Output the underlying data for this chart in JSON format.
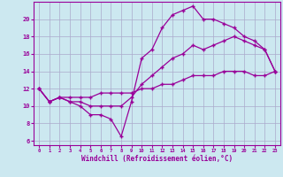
{
  "xlabel": "Windchill (Refroidissement éolien,°C)",
  "bg_color": "#cce8f0",
  "grid_color": "#aaaacc",
  "line_color": "#990099",
  "line1_x": [
    0,
    1,
    2,
    3,
    4,
    5,
    6,
    7,
    8,
    9,
    10,
    11,
    12,
    13,
    14,
    15,
    16,
    17,
    18,
    19,
    20,
    21,
    22,
    23
  ],
  "line1_y": [
    12,
    10.5,
    11,
    10.5,
    10,
    9,
    9,
    8.5,
    6.5,
    10.5,
    15.5,
    16.5,
    19,
    20.5,
    21,
    21.5,
    20,
    20,
    19.5,
    19,
    18,
    17.5,
    16.5,
    14
  ],
  "line2_x": [
    0,
    1,
    2,
    3,
    4,
    5,
    6,
    7,
    8,
    9,
    10,
    11,
    12,
    13,
    14,
    15,
    16,
    17,
    18,
    19,
    20,
    21,
    22,
    23
  ],
  "line2_y": [
    12,
    10.5,
    11,
    10.5,
    10.5,
    10,
    10,
    10,
    10,
    11,
    12.5,
    13.5,
    14.5,
    15.5,
    16,
    17,
    16.5,
    17,
    17.5,
    18,
    17.5,
    17,
    16.5,
    14
  ],
  "line3_x": [
    0,
    1,
    2,
    3,
    4,
    5,
    6,
    7,
    8,
    9,
    10,
    11,
    12,
    13,
    14,
    15,
    16,
    17,
    18,
    19,
    20,
    21,
    22,
    23
  ],
  "line3_y": [
    12,
    10.5,
    11,
    11,
    11,
    11,
    11.5,
    11.5,
    11.5,
    11.5,
    12,
    12,
    12.5,
    12.5,
    13,
    13.5,
    13.5,
    13.5,
    14,
    14,
    14,
    13.5,
    13.5,
    14
  ],
  "xlim_min": -0.5,
  "xlim_max": 23.5,
  "ylim_min": 5.5,
  "ylim_max": 22,
  "yticks": [
    6,
    8,
    10,
    12,
    14,
    16,
    18,
    20
  ],
  "xticks": [
    0,
    1,
    2,
    3,
    4,
    5,
    6,
    7,
    8,
    9,
    10,
    11,
    12,
    13,
    14,
    15,
    16,
    17,
    18,
    19,
    20,
    21,
    22,
    23
  ]
}
